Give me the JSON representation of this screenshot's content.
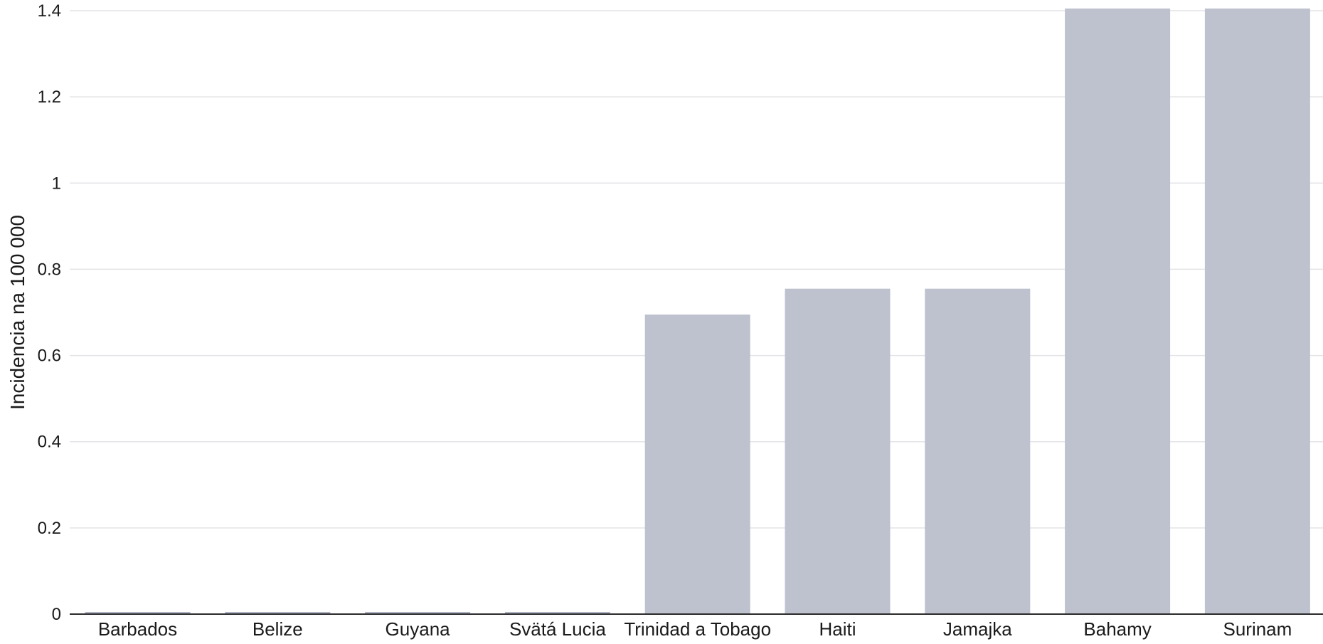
{
  "chart_data": {
    "type": "bar",
    "title": "",
    "xlabel": "",
    "ylabel": "Incidencia na 100 000",
    "categories": [
      "Barbados",
      "Belize",
      "Guyana",
      "Svätá Lucia",
      "Trinidad a Tobago",
      "Haiti",
      "Jamajka",
      "Bahamy",
      "Surinam"
    ],
    "values": [
      0,
      0,
      0,
      0,
      0.695,
      0.755,
      0.755,
      1.405,
      1.405
    ],
    "ylim": [
      0,
      1.4
    ],
    "yticks": [
      0,
      0.2,
      0.4,
      0.6,
      0.8,
      1,
      1.2,
      1.4
    ],
    "ytick_labels": [
      "0",
      "0.2",
      "0.4",
      "0.6",
      "0.8",
      "1",
      "1.2",
      "1.4"
    ],
    "grid": true,
    "legend": "none",
    "colors": {
      "bar": "#bec2cf",
      "bar_stub": "#aeb3c4",
      "grid": "#e4e4e8",
      "axis": "#2b2b2b",
      "text": "#1a1a1a"
    }
  }
}
